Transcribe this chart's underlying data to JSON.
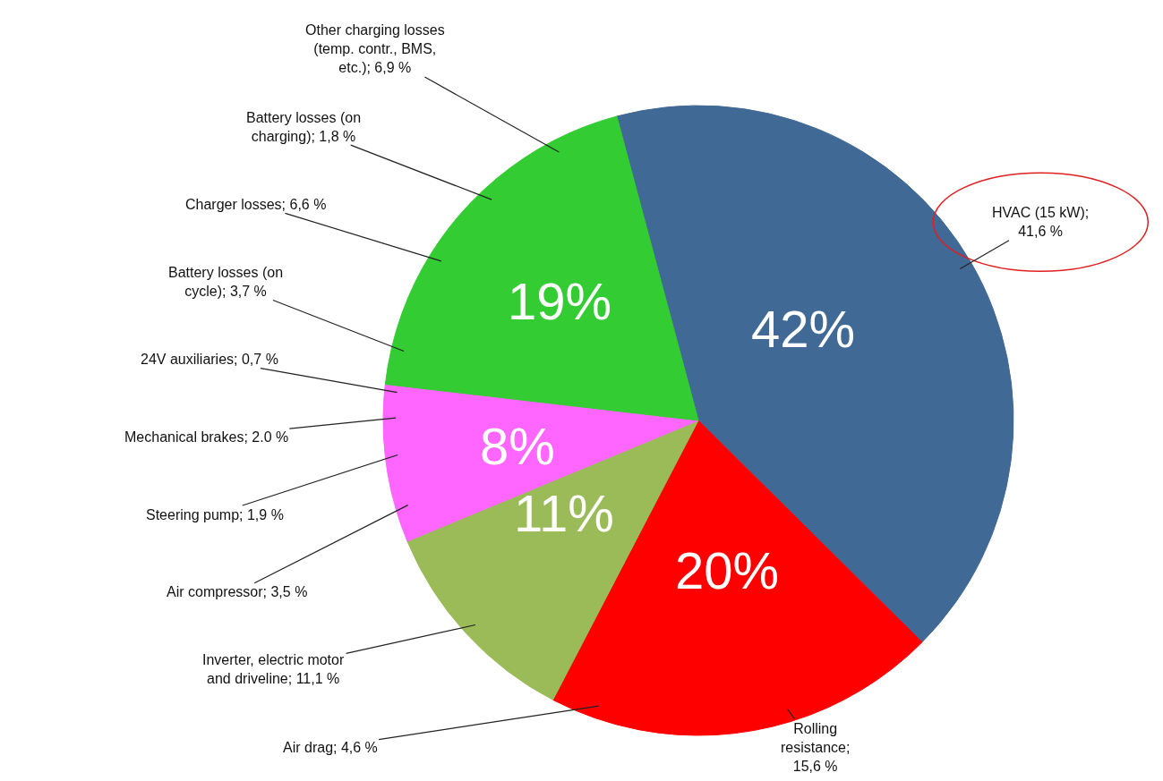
{
  "chart_data": {
    "type": "pie",
    "categories": [
      "HVAC (15 kW); 41,6 %",
      "Rolling resistance; 15,6 %",
      "Air drag; 4,6 %",
      "Inverter, electric motor and driveline; 11,1 %",
      "Air compressor; 3,5 %",
      "Steering pump; 1,9 %",
      "Mechanical brakes; 2.0 %",
      "24V auxiliaries; 0,7 %",
      "Battery losses (on cycle); 3,7 %",
      "Charger losses; 6,6 %",
      "Battery losses (on charging); 1,8 %",
      "Other charging losses (temp. contr., BMS, etc.); 6,9 %"
    ],
    "values": [
      41.6,
      15.6,
      4.6,
      11.1,
      3.5,
      1.9,
      2.0,
      0.7,
      3.7,
      6.6,
      1.8,
      6.9
    ],
    "colors": [
      "#416995",
      "#ff0000",
      "#ff0000",
      "#9bbb59",
      "#ff66ff",
      "#ff66ff",
      "#ff66ff",
      "#ff66ff",
      "#33cc33",
      "#33cc33",
      "#33cc33",
      "#33cc33"
    ],
    "annotations": [
      "42%",
      "20%",
      "11%",
      "8%",
      "19%"
    ],
    "legend": false
  }
}
